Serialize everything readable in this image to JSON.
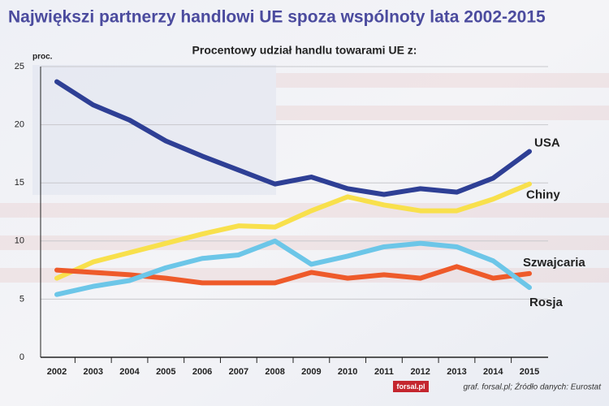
{
  "chart_data": {
    "type": "line",
    "title": "Największi partnerzy handlowi UE spoza wspólnoty lata 2002-2015",
    "subtitle": "Procentowy udział handlu towarami UE z:",
    "y_label": "proc.",
    "categories": [
      "2002",
      "2003",
      "2004",
      "2005",
      "2006",
      "2007",
      "2008",
      "2009",
      "2010",
      "2011",
      "2012",
      "2013",
      "2014",
      "2015"
    ],
    "series": [
      {
        "name": "USA",
        "color": "#2e3f95",
        "values": [
          23.7,
          21.7,
          20.4,
          18.6,
          17.3,
          16.1,
          14.9,
          15.5,
          14.5,
          14.0,
          14.5,
          14.2,
          15.4,
          17.7
        ]
      },
      {
        "name": "Chiny",
        "color": "#f8e04c",
        "values": [
          6.8,
          8.2,
          9.0,
          9.8,
          10.6,
          11.3,
          11.2,
          12.6,
          13.8,
          13.1,
          12.6,
          12.6,
          13.6,
          14.9
        ]
      },
      {
        "name": "Szwajcaria",
        "color": "#ee5a2a",
        "values": [
          7.5,
          7.3,
          7.1,
          6.8,
          6.4,
          6.4,
          6.4,
          7.3,
          6.8,
          7.1,
          6.8,
          7.8,
          6.8,
          7.2
        ]
      },
      {
        "name": "Rosja",
        "color": "#6cc6e8",
        "values": [
          5.4,
          6.1,
          6.6,
          7.7,
          8.5,
          8.8,
          10.0,
          8.0,
          8.7,
          9.5,
          9.8,
          9.5,
          8.3,
          6.0
        ]
      }
    ],
    "ylim": [
      0,
      25
    ],
    "yticks": [
      0,
      5,
      10,
      15,
      20,
      25
    ],
    "grid": true,
    "logo": "forsal.pl",
    "source": "graf. forsal.pl; Źródło danych: Eurostat"
  }
}
